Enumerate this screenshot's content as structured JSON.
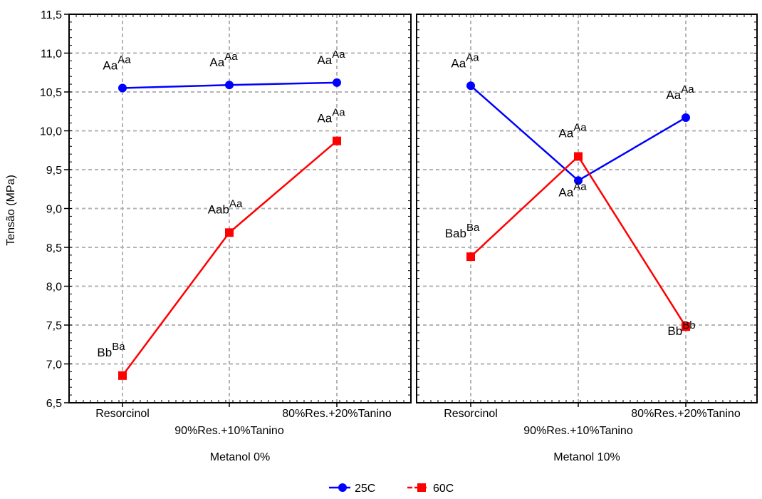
{
  "chart_data": {
    "type": "line",
    "ylabel": "Tensão (MPa)",
    "ylim": [
      6.5,
      11.5
    ],
    "yticks": [
      "6,5",
      "7,0",
      "7,5",
      "8,0",
      "8,5",
      "9,0",
      "9,5",
      "10,0",
      "10,5",
      "11,0",
      "11,5"
    ],
    "ytick_values": [
      6.5,
      7.0,
      7.5,
      8.0,
      8.5,
      9.0,
      9.5,
      10.0,
      10.5,
      11.0,
      11.5
    ],
    "grid": true,
    "categories": [
      "Resorcinol",
      "90%Res.+10%Tanino",
      "80%Res.+20%Tanino"
    ],
    "legend_position": "bottom-center",
    "series_colors": {
      "25C": "#0000ff",
      "60C": "#ff0000"
    },
    "panels": [
      {
        "xlabel": "Metanol 0%",
        "series": [
          {
            "name": "25C",
            "marker": "circle",
            "values": [
              10.55,
              10.59,
              10.62
            ],
            "labels": [
              {
                "base": "Aa",
                "sup": "Aa"
              },
              {
                "base": "Aa",
                "sup": "Aa"
              },
              {
                "base": "Aa",
                "sup": "Aa"
              }
            ]
          },
          {
            "name": "60C",
            "marker": "square",
            "values": [
              6.85,
              8.69,
              9.87
            ],
            "labels": [
              {
                "base": "Bb",
                "sup": "Ba"
              },
              {
                "base": "Aab",
                "sup": "Aa"
              },
              {
                "base": "Aa",
                "sup": "Aa"
              }
            ]
          }
        ]
      },
      {
        "xlabel": "Metanol 10%",
        "series": [
          {
            "name": "25C",
            "marker": "circle",
            "values": [
              10.58,
              9.36,
              10.17
            ],
            "labels": [
              {
                "base": "Aa",
                "sup": "Aa"
              },
              {
                "base": "Aa",
                "sup": "Aa"
              },
              {
                "base": "Aa",
                "sup": "Aa"
              }
            ]
          },
          {
            "name": "60C",
            "marker": "square",
            "values": [
              8.38,
              9.67,
              7.48
            ],
            "labels": [
              {
                "base": "Bab",
                "sup": "Ba"
              },
              {
                "base": "Aa",
                "sup": "Aa"
              },
              {
                "base": "Bb",
                "sup": "Bb"
              }
            ]
          }
        ]
      }
    ]
  }
}
